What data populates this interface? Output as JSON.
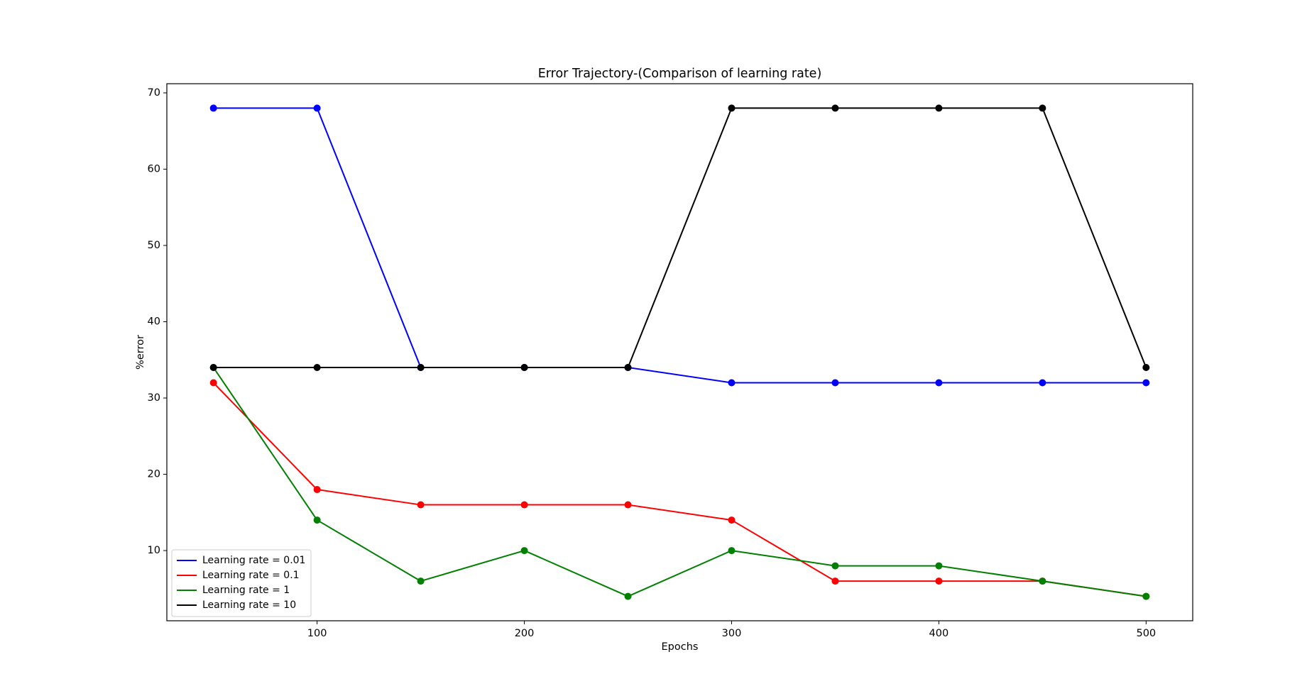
{
  "chart_data": {
    "type": "line",
    "title": "Error Trajectory-(Comparison of learning rate)",
    "xlabel": "Epochs",
    "ylabel": "%error",
    "x": [
      50,
      100,
      150,
      200,
      250,
      300,
      350,
      400,
      450,
      500
    ],
    "xlim": [
      27.5,
      522.5
    ],
    "ylim": [
      0.8,
      71.2
    ],
    "xticks": [
      100,
      200,
      300,
      400,
      500
    ],
    "yticks": [
      10,
      20,
      30,
      40,
      50,
      60,
      70
    ],
    "grid": false,
    "legend_position": "lower-left",
    "series": [
      {
        "name": "Learning rate = 0.01",
        "color": "#0000ff",
        "values": [
          68,
          68,
          34,
          34,
          34,
          32,
          32,
          32,
          32,
          32
        ]
      },
      {
        "name": "Learning rate = 0.1",
        "color": "#ff0000",
        "values": [
          32,
          18,
          16,
          16,
          16,
          14,
          6,
          6,
          6,
          4
        ]
      },
      {
        "name": "Learning rate = 1",
        "color": "#008000",
        "values": [
          34,
          14,
          6,
          10,
          4,
          10,
          8,
          8,
          6,
          4
        ]
      },
      {
        "name": "Learning rate = 10",
        "color": "#000000",
        "values": [
          34,
          34,
          34,
          34,
          34,
          68,
          68,
          68,
          68,
          34
        ]
      }
    ]
  }
}
